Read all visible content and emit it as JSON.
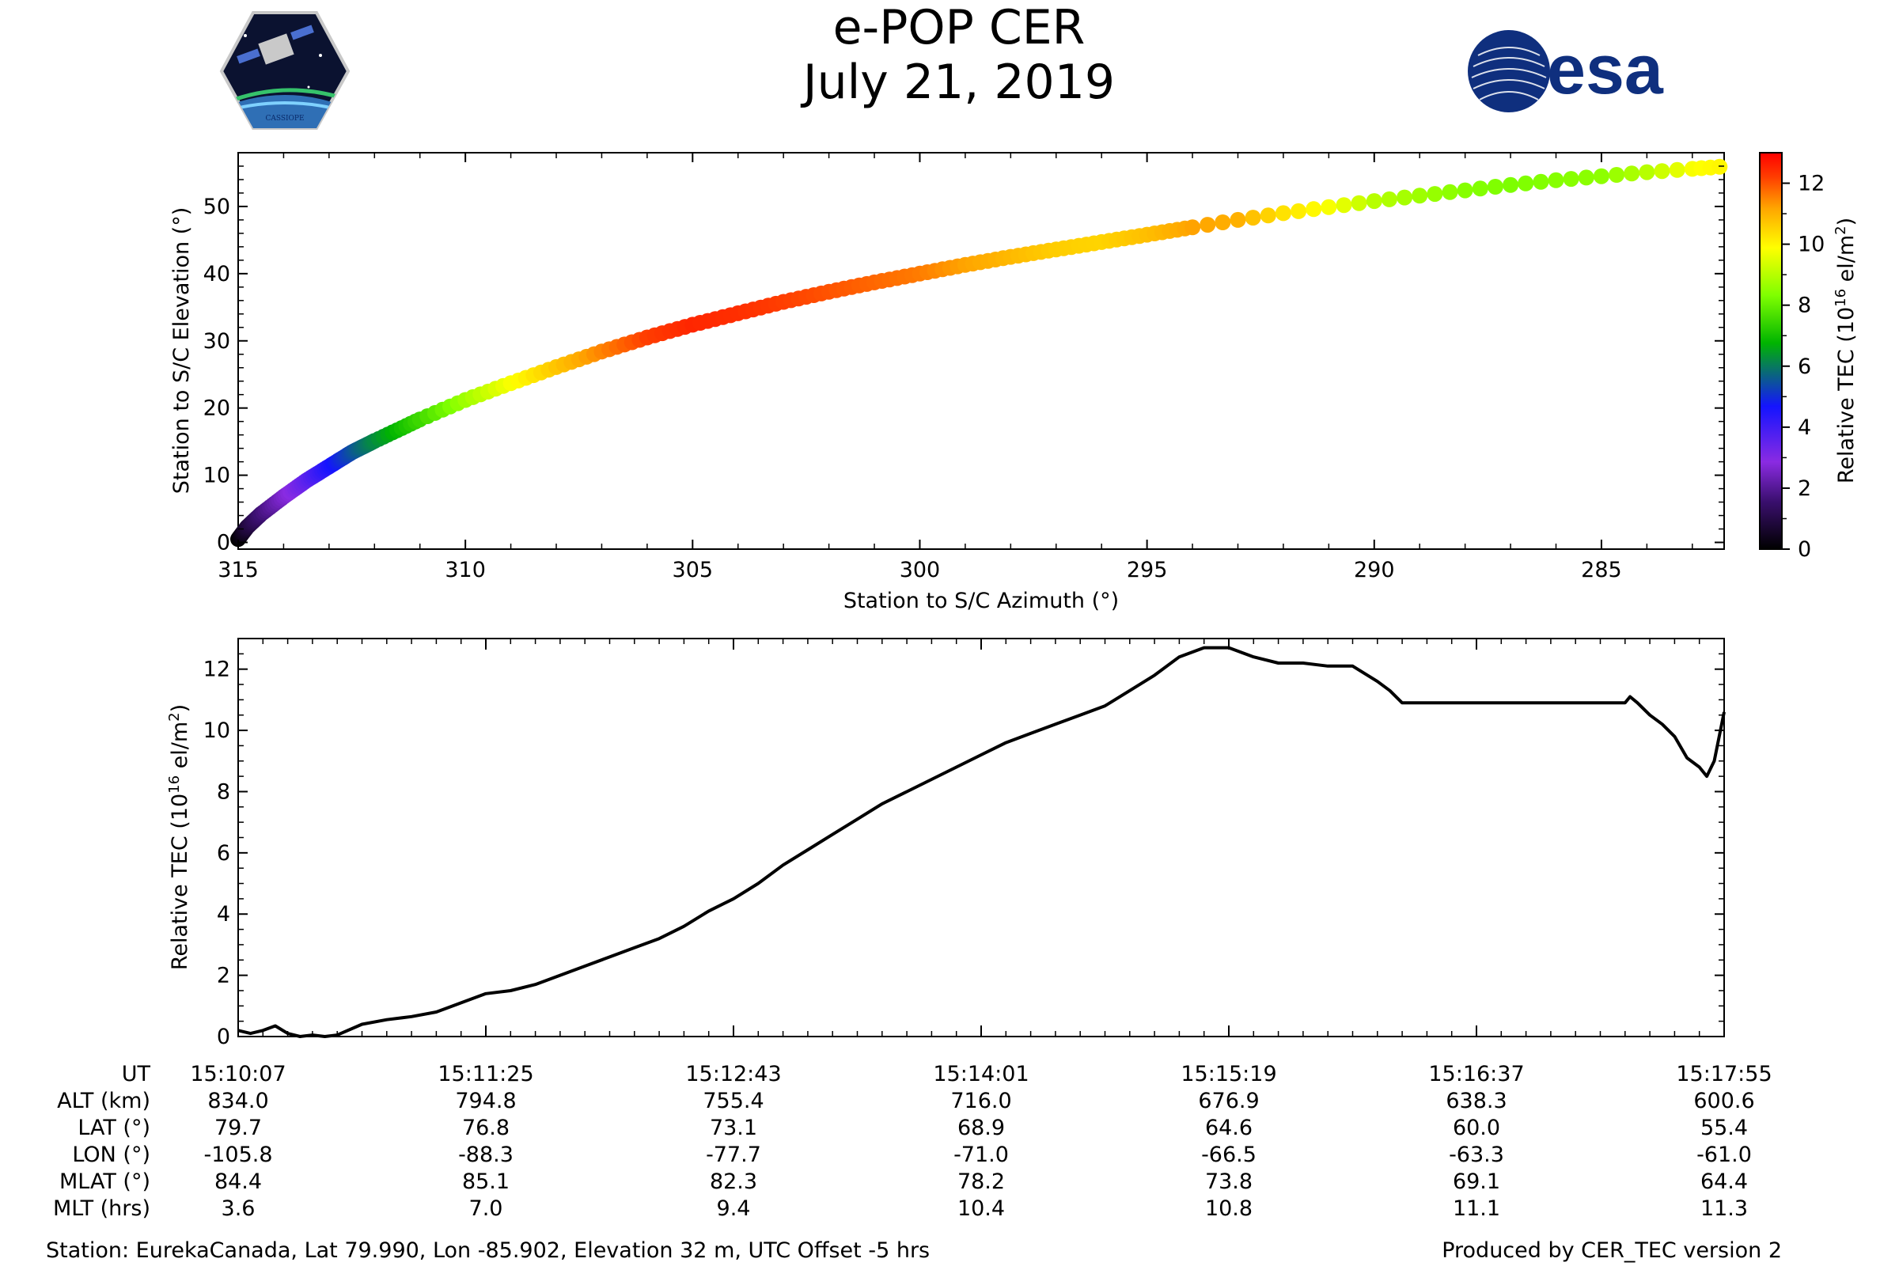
{
  "header": {
    "title": "e-POP CER",
    "date": "July 21, 2019",
    "left_logo": "cassiope-mission-logo",
    "left_logo_text": "CASSIOPE",
    "right_logo_text": "esa"
  },
  "colors": {
    "line": "#000000",
    "colormap": [
      "#000000",
      "#3a0f6e",
      "#8a2be2",
      "#1414ff",
      "#00b400",
      "#7fff00",
      "#ffff00",
      "#ffa500",
      "#ff3c00",
      "#ff0000"
    ]
  },
  "chart_data": [
    {
      "type": "scatter",
      "xlabel": "Station to S/C Azimuth (°)",
      "ylabel": "Station to S/C Elevation (°)",
      "xlim": [
        315,
        282.3
      ],
      "ylim": [
        -1,
        58
      ],
      "xticks": [
        315,
        310,
        305,
        300,
        295,
        290,
        285
      ],
      "yticks": [
        0,
        10,
        20,
        30,
        40,
        50
      ],
      "xtick_labels": [
        "315",
        "310",
        "305",
        "300",
        "295",
        "290",
        "285"
      ],
      "ytick_labels": [
        "0",
        "10",
        "20",
        "30",
        "40",
        "50"
      ],
      "points": [
        [
          315.0,
          0.5,
          0.0
        ],
        [
          314.8,
          2.3,
          0.8
        ],
        [
          314.5,
          4.2,
          1.6
        ],
        [
          314.0,
          6.8,
          2.6
        ],
        [
          313.5,
          9.2,
          3.5
        ],
        [
          313.0,
          11.3,
          4.5
        ],
        [
          312.5,
          13.4,
          5.4
        ],
        [
          312.0,
          15.1,
          6.2
        ],
        [
          311.0,
          18.3,
          7.5
        ],
        [
          310.0,
          21.2,
          8.7
        ],
        [
          309.0,
          23.7,
          9.8
        ],
        [
          308.0,
          26.1,
          10.7
        ],
        [
          307.0,
          28.4,
          11.5
        ],
        [
          306.0,
          30.5,
          12.2
        ],
        [
          305.0,
          32.4,
          12.5
        ],
        [
          304.0,
          34.1,
          12.4
        ],
        [
          303.0,
          35.8,
          12.2
        ],
        [
          302.0,
          37.3,
          12.0
        ],
        [
          301.0,
          38.7,
          11.8
        ],
        [
          300.0,
          40.0,
          11.6
        ],
        [
          299.0,
          41.3,
          11.2
        ],
        [
          298.0,
          42.5,
          10.9
        ],
        [
          297.0,
          43.6,
          10.6
        ],
        [
          296.0,
          44.7,
          10.5
        ],
        [
          295.0,
          45.8,
          10.8
        ],
        [
          294.0,
          46.9,
          11.2
        ],
        [
          293.0,
          48.0,
          11.0
        ],
        [
          292.0,
          49.0,
          10.3
        ],
        [
          291.0,
          49.9,
          9.8
        ],
        [
          290.0,
          50.8,
          9.0
        ],
        [
          289.0,
          51.6,
          8.7
        ],
        [
          288.0,
          52.4,
          8.4
        ],
        [
          287.0,
          53.2,
          8.3
        ],
        [
          286.0,
          53.9,
          8.4
        ],
        [
          285.0,
          54.5,
          8.5
        ],
        [
          284.0,
          55.1,
          9.0
        ],
        [
          283.0,
          55.6,
          9.8
        ],
        [
          282.4,
          55.9,
          10.0
        ]
      ],
      "colorbar": {
        "label": "Relative TEC (10",
        "label_exp": "16",
        "label_end": " el/m",
        "label_exp2": "2",
        "label_close": ")",
        "range": [
          0,
          13
        ],
        "ticks": [
          0,
          2,
          4,
          6,
          8,
          10,
          12
        ],
        "tick_labels": [
          "0",
          "2",
          "4",
          "6",
          "8",
          "10",
          "12"
        ]
      }
    },
    {
      "type": "line",
      "ylabel": "Relative TEC (10",
      "ylabel_exp": "16",
      "ylabel_end": " el/m",
      "ylabel_exp2": "2",
      "ylabel_close": ")",
      "xlim": [
        0,
        6
      ],
      "ylim": [
        0,
        13
      ],
      "yticks": [
        0,
        2,
        4,
        6,
        8,
        10,
        12
      ],
      "ytick_labels": [
        "0",
        "2",
        "4",
        "6",
        "8",
        "10",
        "12"
      ],
      "x": [
        0,
        0.05,
        0.1,
        0.15,
        0.2,
        0.25,
        0.3,
        0.35,
        0.4,
        0.5,
        0.6,
        0.7,
        0.8,
        0.9,
        1.0,
        1.1,
        1.2,
        1.3,
        1.4,
        1.5,
        1.6,
        1.7,
        1.8,
        1.9,
        2.0,
        2.1,
        2.2,
        2.3,
        2.4,
        2.5,
        2.6,
        2.7,
        2.8,
        2.9,
        3.0,
        3.1,
        3.2,
        3.3,
        3.4,
        3.5,
        3.6,
        3.7,
        3.8,
        3.9,
        4.0,
        4.1,
        4.2,
        4.3,
        4.4,
        4.5,
        4.6,
        4.65,
        4.7,
        4.8,
        4.9,
        5.0,
        5.1,
        5.15,
        5.2,
        5.25,
        5.3,
        5.5,
        5.6,
        5.62,
        5.65,
        5.7,
        5.75,
        5.8,
        5.85,
        5.9,
        5.93,
        5.96,
        6.0
      ],
      "y": [
        0.2,
        0.1,
        0.2,
        0.35,
        0.1,
        0.0,
        0.05,
        0.0,
        0.05,
        0.4,
        0.55,
        0.65,
        0.8,
        1.1,
        1.4,
        1.5,
        1.7,
        2.0,
        2.3,
        2.6,
        2.9,
        3.2,
        3.6,
        4.1,
        4.5,
        5.0,
        5.6,
        6.1,
        6.6,
        7.1,
        7.6,
        8.0,
        8.4,
        8.8,
        9.2,
        9.6,
        9.9,
        10.2,
        10.5,
        10.8,
        11.3,
        11.8,
        12.4,
        12.7,
        12.7,
        12.4,
        12.2,
        12.2,
        12.1,
        12.1,
        11.6,
        11.3,
        10.9,
        10.9,
        10.9,
        10.9,
        10.9,
        10.9,
        10.9,
        10.9,
        10.9,
        10.9,
        10.9,
        11.1,
        10.9,
        10.5,
        10.2,
        9.8,
        9.1,
        8.8,
        8.5,
        9.0,
        10.6
      ]
    }
  ],
  "time_table": {
    "row_labels": [
      "UT",
      "ALT (km)",
      "LAT (°)",
      "LON (°)",
      "MLAT (°)",
      "MLT (hrs)"
    ],
    "columns": [
      [
        "15:10:07",
        "834.0",
        "79.7",
        "-105.8",
        "84.4",
        "3.6"
      ],
      [
        "15:11:25",
        "794.8",
        "76.8",
        "-88.3",
        "85.1",
        "7.0"
      ],
      [
        "15:12:43",
        "755.4",
        "73.1",
        "-77.7",
        "82.3",
        "9.4"
      ],
      [
        "15:14:01",
        "716.0",
        "68.9",
        "-71.0",
        "78.2",
        "10.4"
      ],
      [
        "15:15:19",
        "676.9",
        "64.6",
        "-66.5",
        "73.8",
        "10.8"
      ],
      [
        "15:16:37",
        "638.3",
        "60.0",
        "-63.3",
        "69.1",
        "11.1"
      ],
      [
        "15:17:55",
        "600.6",
        "55.4",
        "-61.0",
        "64.4",
        "11.3"
      ]
    ]
  },
  "footer": {
    "station": "Station: EurekaCanada, Lat 79.990, Lon -85.902, Elevation 32 m, UTC Offset -5 hrs",
    "produced_by": "Produced by CER_TEC version 2"
  }
}
